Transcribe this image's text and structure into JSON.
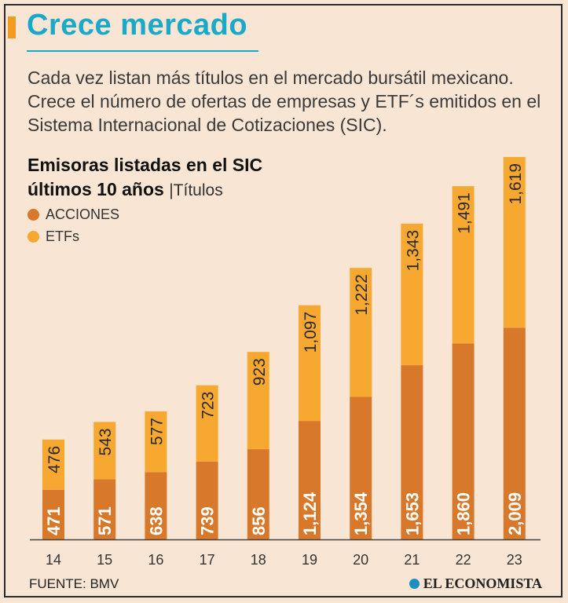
{
  "header": {
    "title": "Crece mercado",
    "subtitle": "Cada vez listan más títulos en el mercado bursátil mexicano. Crece el número de ofertas de empresas y ETF´s emitidos en el Sistema Internacional de Cotizaciones (SIC)."
  },
  "colors": {
    "acciones": "#d8782a",
    "etfs": "#f7a830",
    "accent": "#19a9c9",
    "accent_bar": "#f29b1e"
  },
  "chart_data": {
    "type": "bar",
    "stacked": true,
    "title_line1": "Emisoras listadas en el SIC",
    "title_line2": "últimos 10 años",
    "unit": "|Títulos",
    "categories": [
      "14",
      "15",
      "16",
      "17",
      "18",
      "19",
      "20",
      "21",
      "22",
      "23"
    ],
    "series": [
      {
        "name": "ACCIONES",
        "color": "#d8782a",
        "values": [
          471,
          571,
          638,
          739,
          856,
          1124,
          1354,
          1653,
          1860,
          2009
        ],
        "labels": [
          "471",
          "571",
          "638",
          "739",
          "856",
          "1,124",
          "1,354",
          "1,653",
          "1,860",
          "2,009"
        ]
      },
      {
        "name": "ETFs",
        "color": "#f7a830",
        "values": [
          476,
          543,
          577,
          723,
          923,
          1097,
          1222,
          1343,
          1491,
          1619
        ],
        "labels": [
          "476",
          "543",
          "577",
          "723",
          "923",
          "1,097",
          "1,222",
          "1,343",
          "1,491",
          "1,619"
        ]
      }
    ],
    "ylim": [
      0,
      3650
    ],
    "grid": false,
    "legend_position": "top-left"
  },
  "footer": {
    "source": "FUENTE: BMV",
    "brand": "EL ECONOMISTA"
  }
}
